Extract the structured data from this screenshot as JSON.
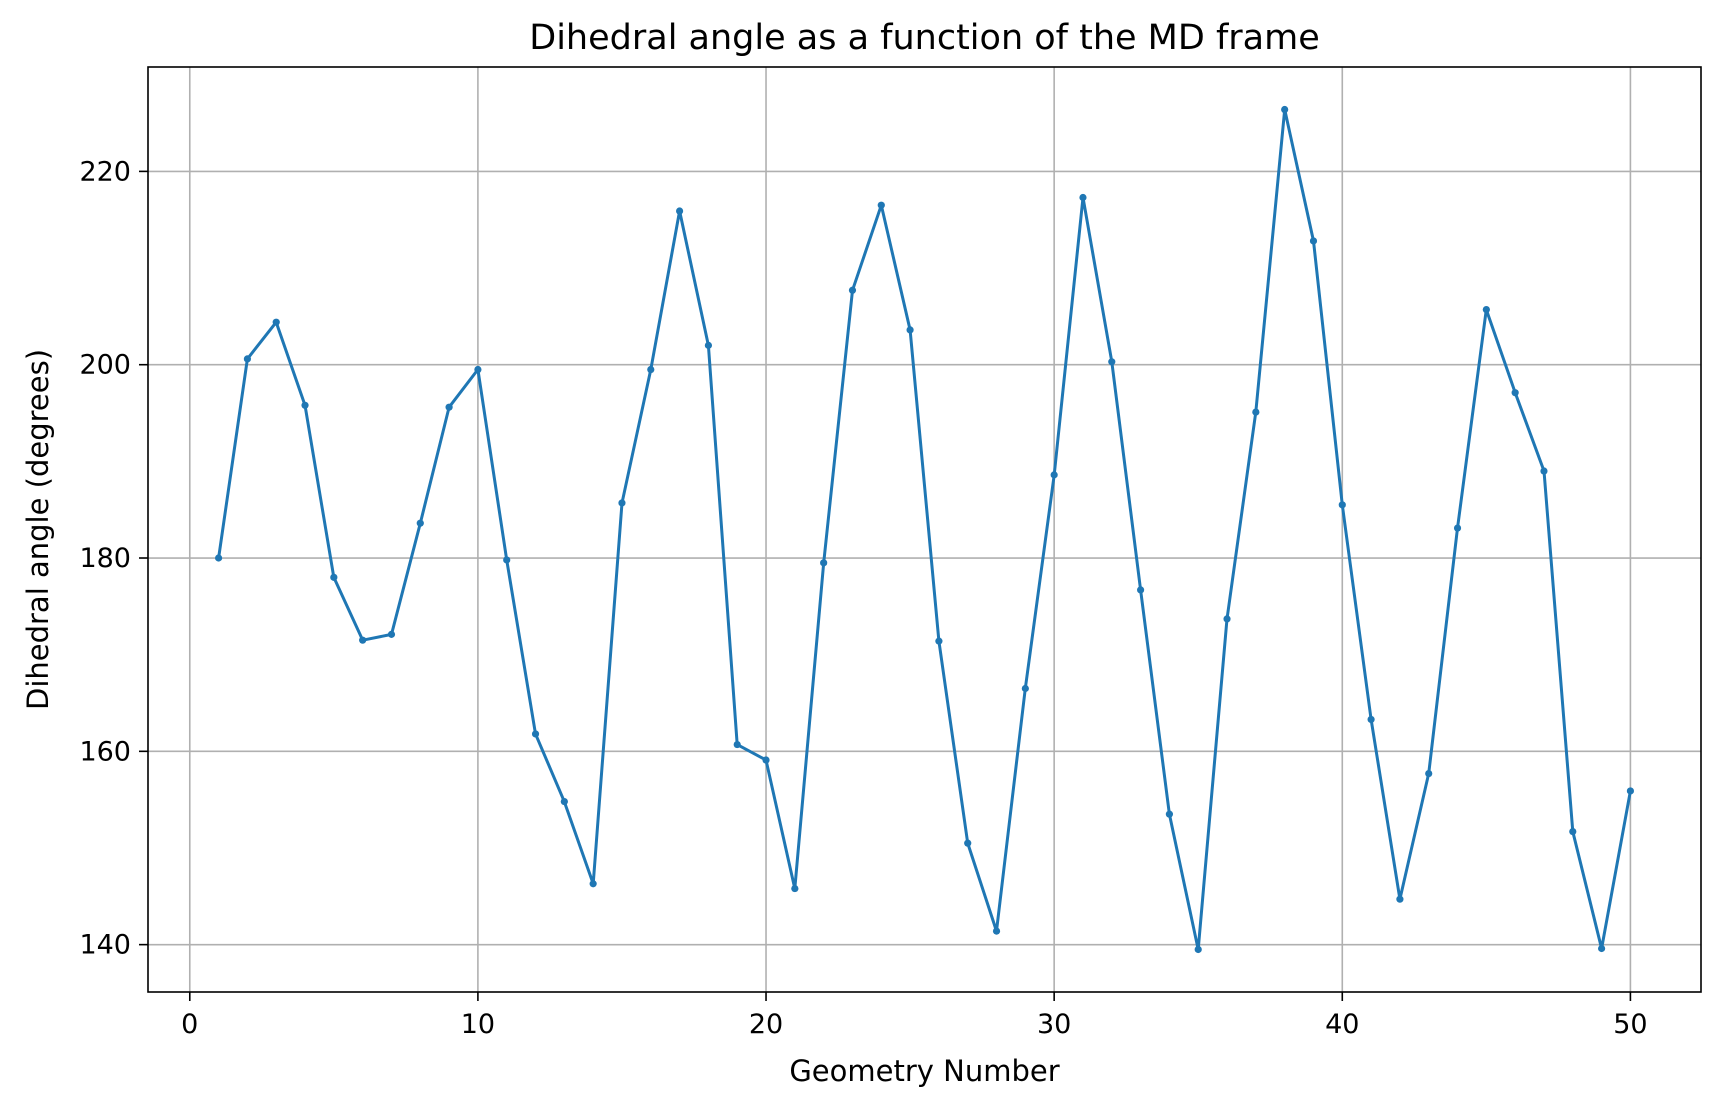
{
  "chart_data": {
    "type": "line",
    "title": "Dihedral angle as a function of the MD frame",
    "xlabel": "Geometry Number",
    "ylabel": "Dihedral angle (degrees)",
    "xlim": [
      -1.45,
      52.45
    ],
    "ylim": [
      135.1,
      230.8
    ],
    "xticks": [
      0,
      10,
      20,
      30,
      40,
      50
    ],
    "yticks": [
      140,
      160,
      180,
      200,
      220
    ],
    "grid": true,
    "legend": "none",
    "color": "#1f77b4",
    "series": [
      {
        "marker": "dot",
        "x": [
          1,
          2,
          3,
          4,
          5,
          6,
          7,
          8,
          9,
          10,
          11,
          12,
          13,
          14,
          15,
          16,
          17,
          18,
          19,
          20,
          21,
          22,
          23,
          24,
          25,
          26,
          27,
          28,
          29,
          30,
          31,
          32,
          33,
          34,
          35,
          36,
          37,
          38,
          39,
          40,
          41,
          42,
          43,
          44,
          45,
          46,
          47,
          48,
          49,
          50
        ],
        "y": [
          180.0,
          200.6,
          204.4,
          195.8,
          178.0,
          171.5,
          172.1,
          183.6,
          195.6,
          199.5,
          179.8,
          161.8,
          154.8,
          146.3,
          185.7,
          199.5,
          215.9,
          202.0,
          160.7,
          159.1,
          145.8,
          179.5,
          207.7,
          216.5,
          203.6,
          171.4,
          150.5,
          141.4,
          166.5,
          188.6,
          217.3,
          200.3,
          176.7,
          153.5,
          139.5,
          173.7,
          195.1,
          226.4,
          212.8,
          185.5,
          163.3,
          144.7,
          157.7,
          183.1,
          205.7,
          197.1,
          189.0,
          151.7,
          139.6,
          155.9
        ]
      }
    ]
  }
}
